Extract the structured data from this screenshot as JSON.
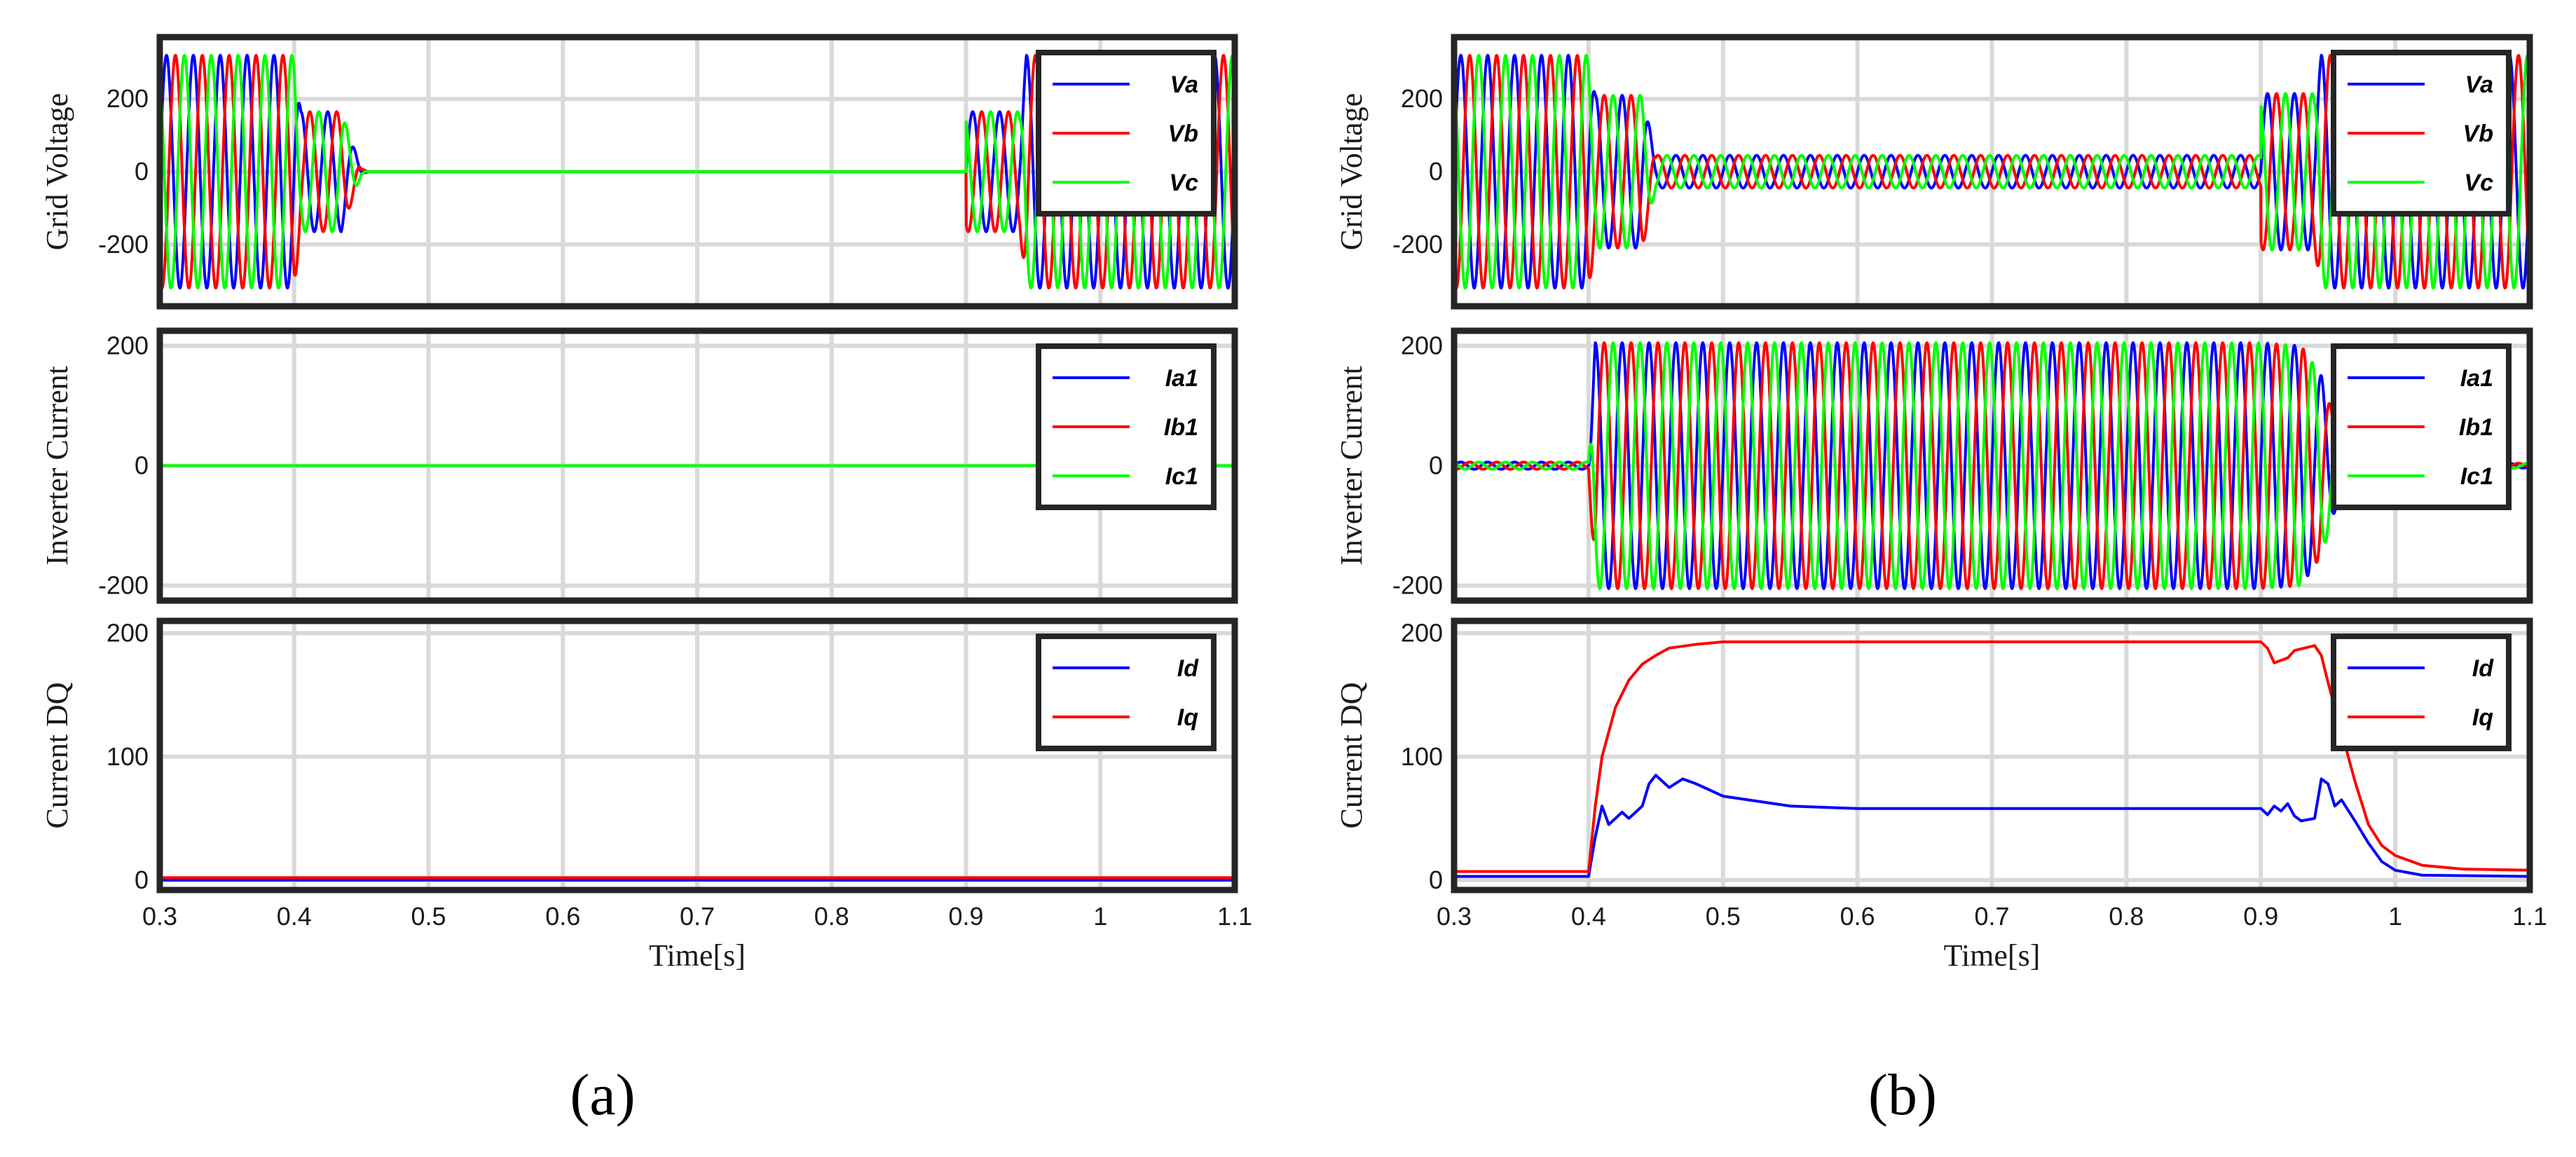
{
  "figure": {
    "panel_labels": [
      "(a)",
      "(b)"
    ]
  },
  "chart_data": [
    {
      "type": "line",
      "panel": "(a)",
      "ylabel": "Grid Voltage",
      "xlim": [
        0.3,
        1.1
      ],
      "ylim": [
        -370,
        370
      ],
      "yticks": [
        {
          "v": 200,
          "label": "200"
        },
        {
          "v": 0,
          "label": "0"
        },
        {
          "v": -200,
          "label": "-200"
        }
      ],
      "xticks": [],
      "xlabel": "",
      "legend": "top-right",
      "colors": {
        "Va": "#0000ff",
        "Vb": "#ff0000",
        "Vc": "#00ff00"
      },
      "series": [
        {
          "name": "Va",
          "color": "#0000ff",
          "kind": "ac",
          "phase_deg": 0
        },
        {
          "name": "Vb",
          "color": "#ff0000",
          "kind": "ac",
          "phase_deg": -120
        },
        {
          "name": "Vc",
          "color": "#00ff00",
          "kind": "ac",
          "phase_deg": 120
        }
      ],
      "frequency_hz": 50,
      "amplitude_profile": [
        [
          0.3,
          320
        ],
        [
          0.4,
          320
        ],
        [
          0.405,
          165
        ],
        [
          0.435,
          165
        ],
        [
          0.45,
          8
        ],
        [
          0.455,
          0
        ],
        [
          0.9,
          0
        ],
        [
          0.9,
          165
        ],
        [
          0.94,
          165
        ],
        [
          0.945,
          320
        ],
        [
          1.1,
          320
        ]
      ]
    },
    {
      "type": "line",
      "panel": "(a)",
      "ylabel": "Inverter Current",
      "xlim": [
        0.3,
        1.1
      ],
      "ylim": [
        -225,
        225
      ],
      "yticks": [
        {
          "v": 200,
          "label": "200"
        },
        {
          "v": 0,
          "label": "0"
        },
        {
          "v": -200,
          "label": "-200"
        }
      ],
      "xticks": [],
      "xlabel": "",
      "legend": "top-right",
      "series": [
        {
          "name": "Ia1",
          "color": "#0000ff",
          "kind": "ac",
          "phase_deg": 0
        },
        {
          "name": "Ib1",
          "color": "#ff0000",
          "kind": "ac",
          "phase_deg": -120
        },
        {
          "name": "Ic1",
          "color": "#00ff00",
          "kind": "ac",
          "phase_deg": 120
        }
      ],
      "frequency_hz": 50,
      "amplitude_profile": [
        [
          0.3,
          0
        ],
        [
          1.1,
          0
        ]
      ]
    },
    {
      "type": "line",
      "panel": "(a)",
      "ylabel": "Current DQ",
      "xlim": [
        0.3,
        1.1
      ],
      "ylim": [
        -8,
        210
      ],
      "yticks": [
        {
          "v": 200,
          "label": "200"
        },
        {
          "v": 100,
          "label": "100"
        },
        {
          "v": 0,
          "label": "0"
        }
      ],
      "xticks": [
        {
          "v": 0.3,
          "label": "0.3"
        },
        {
          "v": 0.4,
          "label": "0.4"
        },
        {
          "v": 0.5,
          "label": "0.5"
        },
        {
          "v": 0.6,
          "label": "0.6"
        },
        {
          "v": 0.7,
          "label": "0.7"
        },
        {
          "v": 0.8,
          "label": "0.8"
        },
        {
          "v": 0.9,
          "label": "0.9"
        },
        {
          "v": 1.0,
          "label": "1"
        },
        {
          "v": 1.1,
          "label": "1.1"
        }
      ],
      "xlabel": "Time[s]",
      "legend": "top-right",
      "series": [
        {
          "name": "Id",
          "color": "#0000ff",
          "kind": "dc",
          "points": [
            [
              0.3,
              0
            ],
            [
              1.1,
              0
            ]
          ]
        },
        {
          "name": "Iq",
          "color": "#ff0000",
          "kind": "dc",
          "points": [
            [
              0.3,
              2
            ],
            [
              1.1,
              2
            ]
          ]
        }
      ]
    },
    {
      "type": "line",
      "panel": "(b)",
      "ylabel": "Grid Voltage",
      "xlim": [
        0.3,
        1.1
      ],
      "ylim": [
        -370,
        370
      ],
      "yticks": [
        {
          "v": 200,
          "label": "200"
        },
        {
          "v": 0,
          "label": "0"
        },
        {
          "v": -200,
          "label": "-200"
        }
      ],
      "xticks": [],
      "xlabel": "",
      "legend": "top-right",
      "series": [
        {
          "name": "Va",
          "color": "#0000ff",
          "kind": "ac",
          "phase_deg": 0
        },
        {
          "name": "Vb",
          "color": "#ff0000",
          "kind": "ac",
          "phase_deg": -120
        },
        {
          "name": "Vc",
          "color": "#00ff00",
          "kind": "ac",
          "phase_deg": 120
        }
      ],
      "frequency_hz": 50,
      "amplitude_profile": [
        [
          0.3,
          320
        ],
        [
          0.4,
          320
        ],
        [
          0.405,
          210
        ],
        [
          0.44,
          210
        ],
        [
          0.45,
          45
        ],
        [
          0.9,
          45
        ],
        [
          0.9,
          215
        ],
        [
          0.94,
          215
        ],
        [
          0.945,
          320
        ],
        [
          1.1,
          320
        ]
      ]
    },
    {
      "type": "line",
      "panel": "(b)",
      "ylabel": "Inverter Current",
      "xlim": [
        0.3,
        1.1
      ],
      "ylim": [
        -225,
        225
      ],
      "yticks": [
        {
          "v": 200,
          "label": "200"
        },
        {
          "v": 0,
          "label": "0"
        },
        {
          "v": -200,
          "label": "-200"
        }
      ],
      "xticks": [],
      "xlabel": "",
      "legend": "top-right",
      "series": [
        {
          "name": "Ia1",
          "color": "#0000ff",
          "kind": "ac",
          "phase_deg": 0
        },
        {
          "name": "Ib1",
          "color": "#ff0000",
          "kind": "ac",
          "phase_deg": -120
        },
        {
          "name": "Ic1",
          "color": "#00ff00",
          "kind": "ac",
          "phase_deg": 120
        }
      ],
      "frequency_hz": 50,
      "amplitude_profile": [
        [
          0.3,
          6
        ],
        [
          0.4,
          6
        ],
        [
          0.405,
          205
        ],
        [
          0.9,
          205
        ],
        [
          0.93,
          200
        ],
        [
          0.945,
          150
        ],
        [
          0.96,
          40
        ],
        [
          0.975,
          10
        ],
        [
          1.0,
          4
        ],
        [
          1.1,
          4
        ]
      ]
    },
    {
      "type": "line",
      "panel": "(b)",
      "ylabel": "Current DQ",
      "xlim": [
        0.3,
        1.1
      ],
      "ylim": [
        -8,
        210
      ],
      "yticks": [
        {
          "v": 200,
          "label": "200"
        },
        {
          "v": 100,
          "label": "100"
        },
        {
          "v": 0,
          "label": "0"
        }
      ],
      "xticks": [
        {
          "v": 0.3,
          "label": "0.3"
        },
        {
          "v": 0.4,
          "label": "0.4"
        },
        {
          "v": 0.5,
          "label": "0.5"
        },
        {
          "v": 0.6,
          "label": "0.6"
        },
        {
          "v": 0.7,
          "label": "0.7"
        },
        {
          "v": 0.8,
          "label": "0.8"
        },
        {
          "v": 0.9,
          "label": "0.9"
        },
        {
          "v": 1.0,
          "label": "1"
        },
        {
          "v": 1.1,
          "label": "1.1"
        }
      ],
      "xlabel": "Time[s]",
      "legend": "top-right",
      "series": [
        {
          "name": "Id",
          "color": "#0000ff",
          "kind": "dc",
          "points": [
            [
              0.3,
              3
            ],
            [
              0.4,
              3
            ],
            [
              0.405,
              35
            ],
            [
              0.41,
              60
            ],
            [
              0.415,
              45
            ],
            [
              0.42,
              50
            ],
            [
              0.425,
              55
            ],
            [
              0.43,
              50
            ],
            [
              0.44,
              60
            ],
            [
              0.445,
              78
            ],
            [
              0.45,
              85
            ],
            [
              0.455,
              80
            ],
            [
              0.46,
              75
            ],
            [
              0.47,
              82
            ],
            [
              0.48,
              78
            ],
            [
              0.5,
              68
            ],
            [
              0.55,
              60
            ],
            [
              0.6,
              58
            ],
            [
              0.7,
              58
            ],
            [
              0.8,
              58
            ],
            [
              0.9,
              58
            ],
            [
              0.905,
              53
            ],
            [
              0.91,
              60
            ],
            [
              0.915,
              56
            ],
            [
              0.92,
              62
            ],
            [
              0.925,
              52
            ],
            [
              0.93,
              48
            ],
            [
              0.94,
              50
            ],
            [
              0.945,
              82
            ],
            [
              0.95,
              78
            ],
            [
              0.955,
              60
            ],
            [
              0.96,
              65
            ],
            [
              0.97,
              48
            ],
            [
              0.98,
              30
            ],
            [
              0.99,
              15
            ],
            [
              1.0,
              8
            ],
            [
              1.02,
              4
            ],
            [
              1.1,
              3
            ]
          ]
        },
        {
          "name": "Iq",
          "color": "#ff0000",
          "kind": "dc",
          "points": [
            [
              0.3,
              7
            ],
            [
              0.4,
              7
            ],
            [
              0.405,
              60
            ],
            [
              0.41,
              100
            ],
            [
              0.42,
              140
            ],
            [
              0.43,
              162
            ],
            [
              0.44,
              175
            ],
            [
              0.45,
              182
            ],
            [
              0.46,
              188
            ],
            [
              0.48,
              191
            ],
            [
              0.5,
              193
            ],
            [
              0.6,
              193
            ],
            [
              0.7,
              193
            ],
            [
              0.8,
              193
            ],
            [
              0.9,
              193
            ],
            [
              0.905,
              188
            ],
            [
              0.91,
              176
            ],
            [
              0.92,
              180
            ],
            [
              0.925,
              186
            ],
            [
              0.94,
              190
            ],
            [
              0.945,
              182
            ],
            [
              0.95,
              160
            ],
            [
              0.96,
              120
            ],
            [
              0.97,
              80
            ],
            [
              0.98,
              45
            ],
            [
              0.99,
              28
            ],
            [
              1.0,
              20
            ],
            [
              1.02,
              12
            ],
            [
              1.05,
              9
            ],
            [
              1.1,
              8
            ]
          ]
        }
      ]
    }
  ]
}
